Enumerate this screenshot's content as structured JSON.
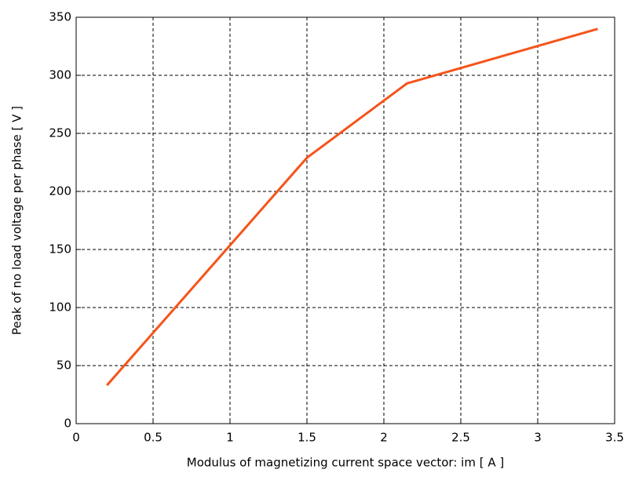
{
  "chart_data": {
    "type": "line",
    "xlabel": "Modulus of magnetizing current space vector: im [ A ]",
    "ylabel": "Peak of no load voltage per phase [ V ]",
    "x": [
      0.2,
      1.5,
      2.15,
      3.39
    ],
    "series": [
      {
        "color": "#f5541a",
        "values": [
          33,
          229,
          293,
          340
        ]
      }
    ],
    "xlim": [
      0,
      3.5
    ],
    "xticks": [
      0,
      0.5,
      1,
      1.5,
      2,
      2.5,
      3,
      3.5
    ],
    "ylim": [
      0,
      350
    ],
    "yticks": [
      0,
      50,
      100,
      150,
      200,
      250,
      300,
      350
    ],
    "grid": true
  }
}
